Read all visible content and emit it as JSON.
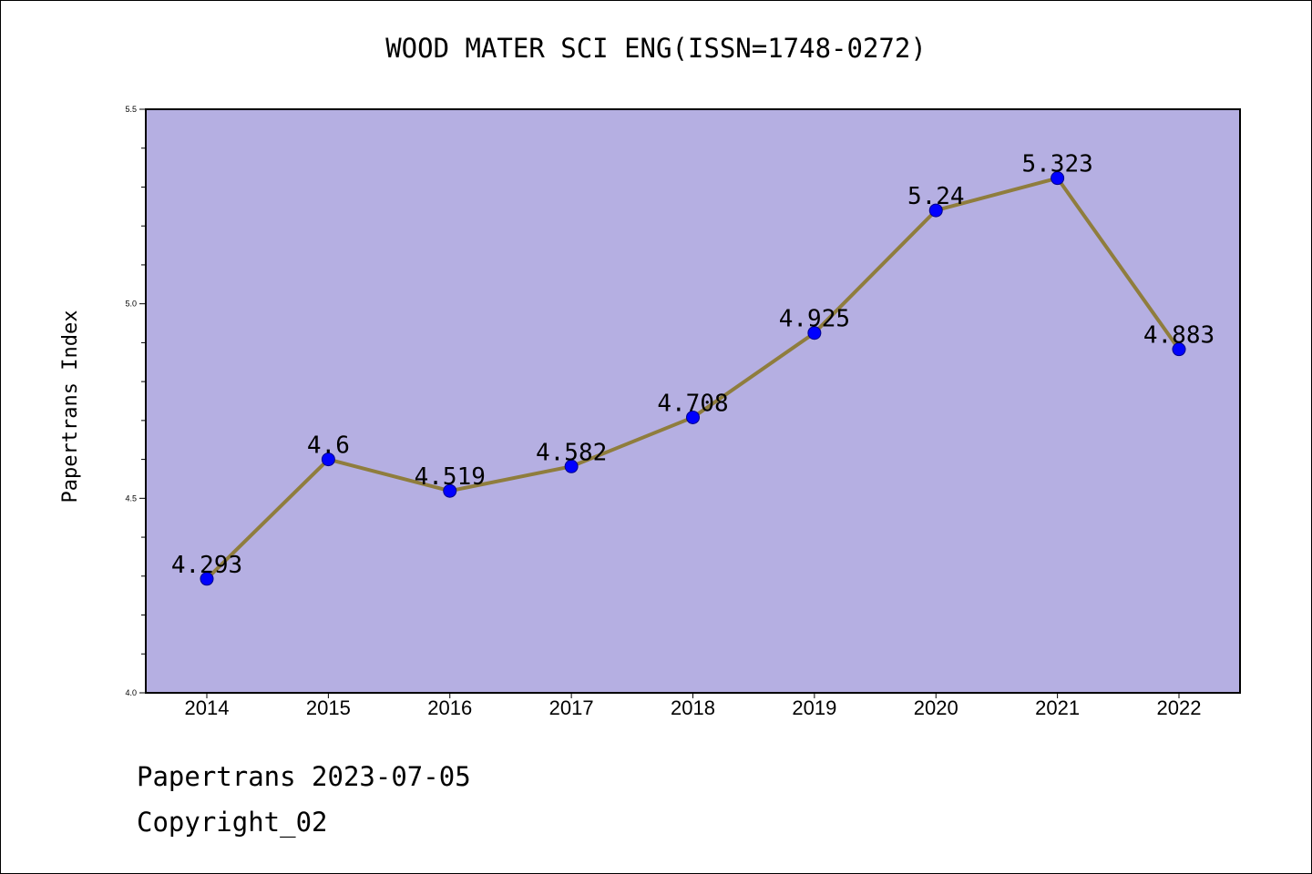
{
  "chart_data": {
    "type": "line",
    "title": "WOOD MATER SCI ENG(ISSN=1748-0272)",
    "xlabel": "",
    "ylabel": "Papertrans Index",
    "categories": [
      "2014",
      "2015",
      "2016",
      "2017",
      "2018",
      "2019",
      "2020",
      "2021",
      "2022"
    ],
    "values": [
      4.293,
      4.6,
      4.519,
      4.582,
      4.708,
      4.925,
      5.24,
      5.323,
      4.883
    ],
    "data_labels": [
      "4.293",
      "4.6",
      "4.519",
      "4.582",
      "4.708",
      "4.925",
      "5.24",
      "5.323",
      "4.883"
    ],
    "ylim": [
      4.0,
      5.5
    ],
    "yticks": [
      "4.0",
      "4.5",
      "5.0",
      "5.5"
    ],
    "grid": false,
    "colors": {
      "plot_background": "#b5afe2",
      "line": "#8f7d3d",
      "marker": "#0000ff",
      "marker_edge": "#00008b"
    }
  },
  "footer": {
    "line1": "Papertrans 2023-07-05",
    "line2": "Copyright_02"
  }
}
